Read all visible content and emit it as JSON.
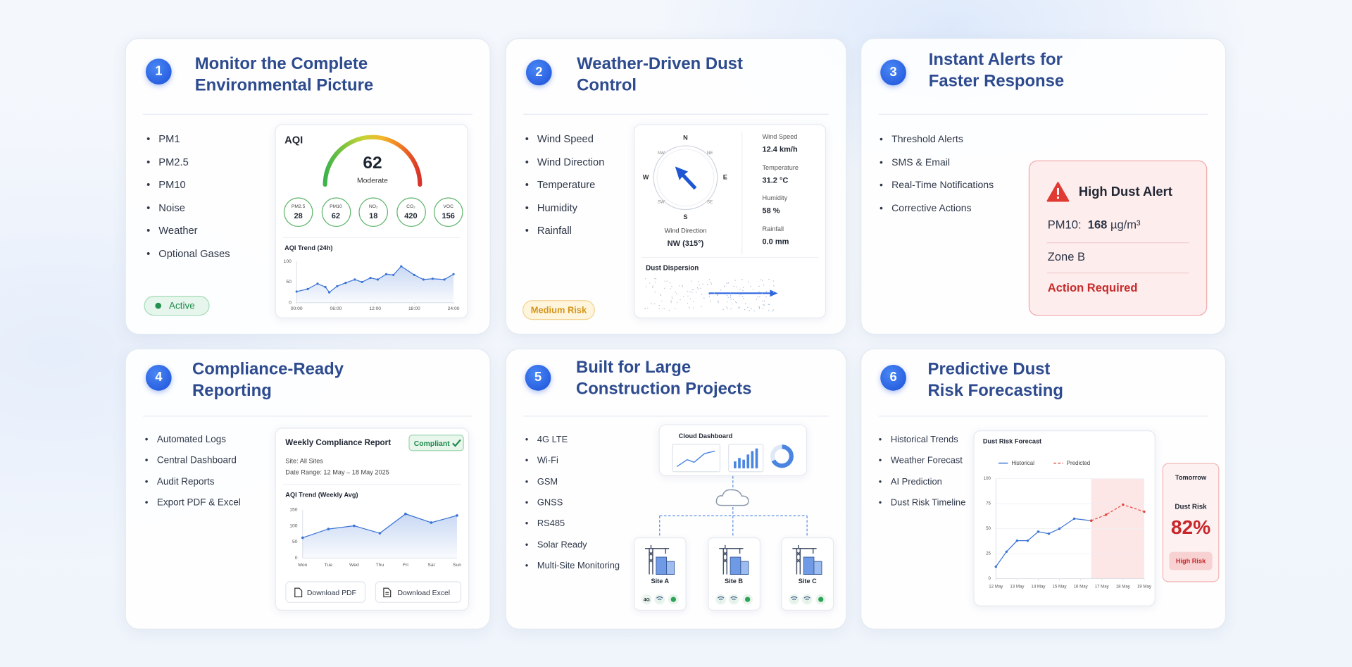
{
  "cards": [
    {
      "number": "1",
      "title": [
        "Monitor the Complete",
        "Environmental Picture"
      ],
      "bullets": [
        "PM1",
        "PM2.5",
        "PM10",
        "Noise",
        "Weather",
        "Optional Gases"
      ],
      "status": "Active",
      "aqi": {
        "label": "AQI",
        "value": 62,
        "category": "Moderate",
        "sensors": [
          {
            "name": "PM2.5",
            "value": 28
          },
          {
            "name": "PM10",
            "value": 62
          },
          {
            "name": "NO₂",
            "value": 18
          },
          {
            "name": "CO₂",
            "value": 420
          },
          {
            "name": "VOC",
            "value": 156
          }
        ]
      },
      "trend": {
        "type": "line",
        "title": "AQI Trend (24h)",
        "x": [
          0,
          1.7,
          3.2,
          4.4,
          5,
          6.2,
          7.5,
          8.9,
          10,
          11.3,
          12.4,
          13.7,
          14.8,
          16,
          18,
          19.4,
          20.8,
          22.6,
          24
        ],
        "xlim": [
          0,
          24
        ],
        "xticks": [
          {
            "value": 0,
            "label": "00:00"
          },
          {
            "value": 6,
            "label": "06:00"
          },
          {
            "value": 12,
            "label": "12:00"
          },
          {
            "value": 18,
            "label": "18:00"
          },
          {
            "value": 24,
            "label": "24:00"
          }
        ],
        "ylim": [
          0,
          100
        ],
        "yticks": [
          0,
          50,
          100
        ],
        "grid": false,
        "series": [
          {
            "color": "#3b74d6",
            "values": [
              27,
              33,
              46,
              38,
              25,
              40,
              48,
              56,
              50,
              60,
              56,
              69,
              67,
              88,
              67,
              56,
              58,
              56,
              69
            ]
          }
        ]
      }
    },
    {
      "number": "2",
      "title": [
        "Weather-Driven Dust",
        "Control"
      ],
      "bullets": [
        "Wind Speed",
        "Wind Direction",
        "Temperature",
        "Humidity",
        "Rainfall"
      ],
      "risk": "Medium Risk",
      "compass": [
        "N",
        "NE",
        "E",
        "SE",
        "S",
        "SW",
        "W",
        "NW"
      ],
      "wind_direction": {
        "label": "Wind Direction",
        "value": "NW (315°)"
      },
      "readings": [
        {
          "label": "Wind Speed",
          "value": "12.4 km/h"
        },
        {
          "label": "Temperature",
          "value": "31.2 °C"
        },
        {
          "label": "Humidity",
          "value": "58 %"
        },
        {
          "label": "Rainfall",
          "value": "0.0 mm"
        }
      ],
      "dispersion": "Dust Dispersion"
    },
    {
      "number": "3",
      "title": [
        "Instant Alerts for",
        "Faster Response"
      ],
      "bullets": [
        "Threshold Alerts",
        "SMS & Email",
        "Real-Time Notifications",
        "Corrective Actions"
      ],
      "alert": {
        "title": "High Dust Alert",
        "metric": "PM10:",
        "value": 168,
        "unit": "µg/m³",
        "zone": "Zone B",
        "action": "Action Required"
      }
    },
    {
      "number": "4",
      "title": [
        "Compliance-Ready",
        "Reporting"
      ],
      "bullets": [
        "Automated Logs",
        "Central Dashboard",
        "Audit Reports",
        "Export PDF & Excel"
      ],
      "report": {
        "title": "Weekly Compliance Report",
        "badge": "Compliant",
        "site": "Site: All Sites",
        "date_range": "Date Range: 12 May – 18 May 2025",
        "buttons": [
          "Download PDF",
          "Download Excel"
        ]
      },
      "trend": {
        "type": "line",
        "title": "AQI Trend (Weekly Avg)",
        "categories": [
          "Mon",
          "Tue",
          "Wed",
          "Thu",
          "Fri",
          "Sat",
          "Sun"
        ],
        "ylim": [
          0,
          150
        ],
        "yticks": [
          0,
          50,
          100,
          150
        ],
        "grid": false,
        "series": [
          {
            "color": "#3b74d6",
            "values": [
              63,
              90,
              100,
              77,
              137,
              110,
              132
            ]
          }
        ]
      }
    },
    {
      "number": "5",
      "title": [
        "Built for Large",
        "Construction Projects"
      ],
      "bullets": [
        "4G LTE",
        "Wi-Fi",
        "GSM",
        "GNSS",
        "RS485",
        "Solar Ready",
        "Multi-Site Monitoring"
      ],
      "cloud": "Cloud Dashboard",
      "sites": [
        "Site A",
        "Site B",
        "Site C"
      ],
      "network": "4G"
    },
    {
      "number": "6",
      "title": [
        "Predictive Dust",
        "Risk Forecasting"
      ],
      "bullets": [
        "Historical Trends",
        "Weather Forecast",
        "AI Prediction",
        "Dust Risk Timeline"
      ],
      "forecast": {
        "type": "line",
        "title": "Dust Risk Forecast",
        "xlim": [
          12,
          19
        ],
        "xticks": [
          {
            "value": 12,
            "label": "12 May"
          },
          {
            "value": 13,
            "label": "13 May"
          },
          {
            "value": 14,
            "label": "14 May"
          },
          {
            "value": 15,
            "label": "15 May"
          },
          {
            "value": 16,
            "label": "16 May"
          },
          {
            "value": 17,
            "label": "17 May"
          },
          {
            "value": 18,
            "label": "18 May"
          },
          {
            "value": 19,
            "label": "19 May"
          }
        ],
        "ylim": [
          0,
          100
        ],
        "yticks": [
          0,
          25,
          50,
          75,
          100
        ],
        "grid": true,
        "series": [
          {
            "name": "Historical",
            "color": "#3b74d6",
            "dashed": false,
            "x": [
              12,
              12.5,
              13,
              13.5,
              14,
              14.5,
              15,
              15.7,
              16.5
            ],
            "values": [
              12,
              27,
              38,
              38,
              47,
              45,
              50,
              60,
              58
            ]
          },
          {
            "name": "Predicted",
            "color": "#e0483e",
            "dashed": true,
            "x": [
              16.5,
              17.2,
              18,
              19
            ],
            "values": [
              58,
              64,
              74,
              67
            ]
          }
        ]
      },
      "tomorrow": {
        "label": "Tomorrow",
        "metric": "Dust Risk",
        "value": "82%",
        "level": "High Risk"
      }
    }
  ]
}
